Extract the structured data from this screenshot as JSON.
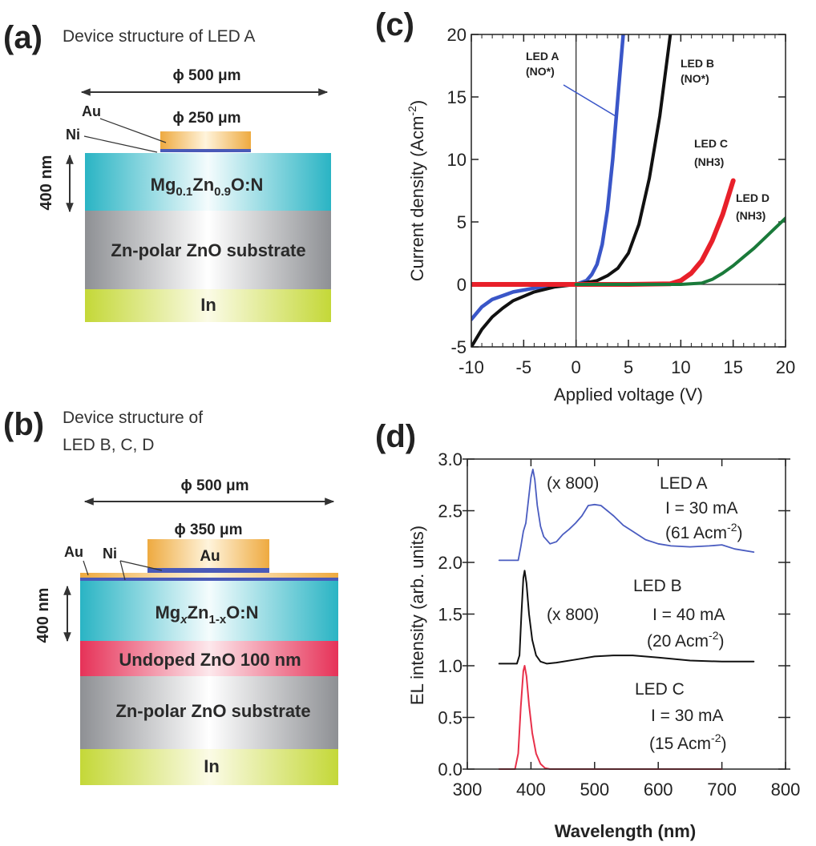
{
  "panel_a": {
    "label": "(a)",
    "title": "Device structure of LED A",
    "outer_diameter": "ϕ 500 μm",
    "pad_diameter": "ϕ 250 μm",
    "au_label": "Au",
    "ni_label": "Ni",
    "thickness": "400 nm",
    "layer_mg": {
      "a": "Mg",
      "b": "0.1",
      "c": "Zn",
      "d": "0.9",
      "e": "O:N"
    },
    "layer_substrate": "Zn-polar ZnO substrate",
    "layer_in": "In"
  },
  "panel_b": {
    "label": "(b)",
    "title_line1": "Device structure of",
    "title_line2": "LED B, C, D",
    "outer_diameter": "ϕ 500 μm",
    "pad_diameter": "ϕ 350 μm",
    "au_label": "Au",
    "ni_label": "Ni",
    "pad_label": "Au",
    "thickness": "400 nm",
    "layer_mg": {
      "a": "Mg",
      "b": "x",
      "c": "Zn",
      "d": "1-x",
      "e": "O:N"
    },
    "layer_undoped": "Undoped ZnO 100 nm",
    "layer_substrate": "Zn-polar ZnO substrate",
    "layer_in": "In"
  },
  "colors": {
    "au": "#f0b24a",
    "ni": "#4a5ab8",
    "mgzno": "#2fb8c8",
    "undoped": "#e8385a",
    "substrate": "#9a9ca0",
    "indium": "#c8dc3a"
  },
  "chart_data": [
    {
      "panel_label": "(c)",
      "type": "line",
      "xlabel": "Applied voltage (V)",
      "ylabel": {
        "main": "Current density (Acm",
        "sup": "-2",
        "close": ")"
      },
      "xlim": [
        -10,
        20
      ],
      "ylim": [
        -5,
        20
      ],
      "xticks": [
        -10,
        -5,
        0,
        5,
        10,
        15,
        20
      ],
      "yticks": [
        -5,
        0,
        5,
        10,
        15,
        20
      ],
      "grid": false,
      "series": [
        {
          "name": "LED A",
          "sub": "(NO*)",
          "color": "#3a56c8",
          "x": [
            -10,
            -9,
            -8,
            -6,
            -4,
            -2,
            0,
            1,
            1.5,
            2,
            2.5,
            3,
            3.5,
            4,
            4.5
          ],
          "y": [
            -2.8,
            -1.8,
            -1.2,
            -0.6,
            -0.3,
            -0.1,
            0,
            0.3,
            0.8,
            1.6,
            3.2,
            6,
            10,
            15,
            20
          ]
        },
        {
          "name": "LED B",
          "sub": "(NO*)",
          "color": "#111111",
          "x": [
            -10,
            -9,
            -8,
            -7,
            -6,
            -4,
            -2,
            0,
            2,
            3,
            4,
            5,
            6,
            7,
            8,
            9
          ],
          "y": [
            -5,
            -3.6,
            -2.6,
            -1.9,
            -1.3,
            -0.6,
            -0.2,
            0,
            0.3,
            0.7,
            1.3,
            2.5,
            4.8,
            8.5,
            13.5,
            20
          ]
        },
        {
          "name": "LED C",
          "sub": "(NH3)",
          "color": "#e8202a",
          "x": [
            -10,
            -5,
            0,
            5,
            9,
            10,
            11,
            12,
            13,
            14,
            15
          ],
          "y": [
            0,
            0,
            0,
            0,
            0.05,
            0.3,
            0.9,
            1.9,
            3.5,
            5.6,
            8.3
          ]
        },
        {
          "name": "LED D",
          "sub": "(NH3)",
          "color": "#1a7a3a",
          "x": [
            0,
            5,
            10,
            12,
            13,
            14,
            15,
            16,
            17,
            18,
            19,
            20
          ],
          "y": [
            0,
            0,
            0,
            0.1,
            0.4,
            0.9,
            1.5,
            2.2,
            2.9,
            3.7,
            4.5,
            5.3
          ]
        }
      ]
    },
    {
      "panel_label": "(d)",
      "type": "line",
      "xlabel": "Wavelength (nm)",
      "ylabel": "EL intensity (arb. units)",
      "xlim": [
        300,
        800
      ],
      "ylim": [
        0,
        3.0
      ],
      "xticks": [
        300,
        400,
        500,
        600,
        700,
        800
      ],
      "yticks": [
        "0.0",
        "0.5",
        "1.0",
        "1.5",
        "2.0",
        "2.5",
        "3.0"
      ],
      "grid": false,
      "series": [
        {
          "name": "LED A",
          "current": "I = 30 mA",
          "density": "(61 Acm",
          "density_sup": "-2",
          "density_close": ")",
          "scale": "(x 800)",
          "color": "#4a5cc0",
          "x": [
            350,
            380,
            384,
            388,
            392,
            396,
            400,
            403,
            406,
            410,
            415,
            420,
            430,
            440,
            450,
            460,
            470,
            480,
            490,
            500,
            510,
            520,
            530,
            545,
            560,
            580,
            600,
            620,
            650,
            680,
            700,
            720,
            750
          ],
          "y": [
            2.02,
            2.02,
            2.15,
            2.3,
            2.38,
            2.6,
            2.82,
            2.9,
            2.8,
            2.55,
            2.35,
            2.25,
            2.18,
            2.2,
            2.27,
            2.32,
            2.38,
            2.45,
            2.55,
            2.56,
            2.55,
            2.5,
            2.45,
            2.36,
            2.3,
            2.22,
            2.18,
            2.16,
            2.15,
            2.16,
            2.17,
            2.13,
            2.1
          ]
        },
        {
          "name": "LED B",
          "current": "I = 40 mA",
          "density": "(20 Acm",
          "density_sup": "-2",
          "density_close": ")",
          "scale": "(x 800)",
          "color": "#111111",
          "x": [
            350,
            378,
            382,
            385,
            388,
            390,
            393,
            397,
            402,
            408,
            415,
            425,
            440,
            470,
            500,
            530,
            560,
            600,
            650,
            700,
            750
          ],
          "y": [
            1.02,
            1.02,
            1.1,
            1.5,
            1.85,
            1.92,
            1.8,
            1.5,
            1.25,
            1.1,
            1.04,
            1.02,
            1.03,
            1.06,
            1.09,
            1.1,
            1.1,
            1.08,
            1.05,
            1.04,
            1.04
          ]
        },
        {
          "name": "LED C",
          "current": "I = 30 mA",
          "density": "(15 Acm",
          "density_sup": "-2",
          "density_close": ")",
          "color": "#e8304a",
          "x": [
            350,
            375,
            380,
            384,
            388,
            390,
            393,
            397,
            402,
            408,
            415,
            422,
            430,
            500,
            600,
            700
          ],
          "y": [
            0,
            0,
            0.15,
            0.6,
            0.95,
            1.0,
            0.9,
            0.62,
            0.35,
            0.15,
            0.05,
            0.01,
            0,
            0,
            0,
            0
          ]
        }
      ]
    }
  ]
}
